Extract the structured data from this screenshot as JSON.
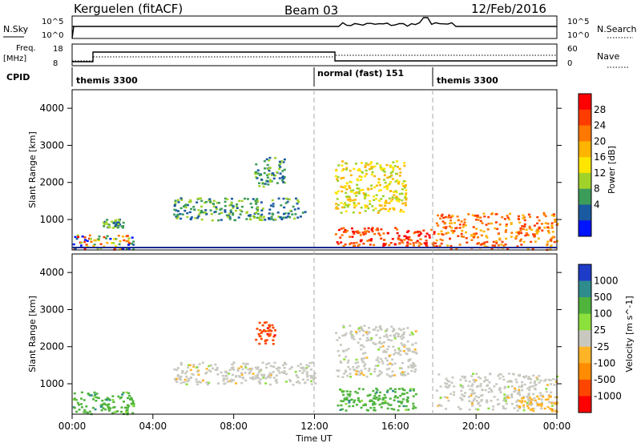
{
  "header": {
    "station": "Kerguelen (fitACF)",
    "beam": "Beam 03",
    "date": "12/Feb/2016"
  },
  "panels": {
    "nsky_label": "N.Sky",
    "nsky_ticks": [
      "10^5",
      "10^0"
    ],
    "nsearch_label": "N.Search",
    "nsearch_ticks": [
      "10^5",
      "10^0"
    ],
    "freq_label": "Freq.",
    "freq_unit": "[MHz]",
    "freq_ticks": [
      "18",
      "8"
    ],
    "nave_label": "Nave",
    "nave_ticks": [
      "60",
      "0"
    ],
    "cpid_label": "CPID",
    "cpid_segments": [
      "themis 3300",
      "normal (fast) 151",
      "themis 3300"
    ]
  },
  "axes": {
    "ylabel": "Slant Range [km]",
    "yticks": [
      "4000",
      "3000",
      "2000",
      "1000"
    ],
    "xlabel": "Time UT",
    "xticks": [
      "00:00",
      "04:00",
      "08:00",
      "12:00",
      "16:00",
      "20:00",
      "00:00"
    ]
  },
  "power_scale": {
    "label": "Power [dB]",
    "ticks": [
      "28",
      "24",
      "20",
      "16",
      "12",
      "8",
      "4"
    ],
    "colors": [
      "#ff0000",
      "#ff3c00",
      "#ff7800",
      "#ffb400",
      "#ffe600",
      "#a0d22a",
      "#3c9c5a",
      "#1a5aa0",
      "#0014ff"
    ]
  },
  "velocity_scale": {
    "label": "Velocity [m s^-1]",
    "ticks": [
      "1000",
      "500",
      "100",
      "25",
      "-25",
      "-100",
      "-500",
      "-1000"
    ],
    "colors": [
      "#1e3cc8",
      "#2e8c8c",
      "#50b43c",
      "#8ce03c",
      "#c8c8c0",
      "#ffb428",
      "#ff8c00",
      "#ff4600",
      "#ff0000"
    ]
  },
  "chart_data": {
    "type": "heatmap",
    "x_range": [
      "00:00",
      "24:00"
    ],
    "y_range_km": [
      180,
      4500
    ],
    "cpid_change_times_ut": [
      "12:00",
      "18:00"
    ],
    "power_regions": [
      {
        "t0": 0.0,
        "t1": 3.0,
        "r0": 200,
        "r1": 600,
        "level": "mixed"
      },
      {
        "t0": 1.5,
        "t1": 2.5,
        "r0": 800,
        "r1": 1050,
        "level": 8
      },
      {
        "t0": 5.0,
        "t1": 11.5,
        "r0": 1000,
        "r1": 1600,
        "level": 8
      },
      {
        "t0": 9.0,
        "t1": 10.5,
        "r0": 1900,
        "r1": 2700,
        "level": 8
      },
      {
        "t0": 13.0,
        "t1": 18.0,
        "r0": 300,
        "r1": 800,
        "level": 28
      },
      {
        "t0": 13.0,
        "t1": 16.5,
        "r0": 1200,
        "r1": 2600,
        "level": 16
      },
      {
        "t0": 18.0,
        "t1": 24.0,
        "r0": 200,
        "r1": 1200,
        "level": 24
      }
    ],
    "velocity_regions": [
      {
        "t0": 0.0,
        "t1": 3.0,
        "r0": 200,
        "r1": 800,
        "v": 100
      },
      {
        "t0": 5.0,
        "t1": 12.0,
        "r0": 1000,
        "r1": 1600,
        "v": 0
      },
      {
        "t0": 9.0,
        "t1": 10.0,
        "r0": 2100,
        "r1": 2700,
        "v": -1000
      },
      {
        "t0": 13.0,
        "t1": 17.0,
        "r0": 300,
        "r1": 900,
        "v": 100
      },
      {
        "t0": 13.0,
        "t1": 17.0,
        "r0": 1200,
        "r1": 2600,
        "v": 0
      },
      {
        "t0": 18.0,
        "t1": 24.0,
        "r0": 300,
        "r1": 1300,
        "v": 0
      },
      {
        "t0": 22.0,
        "t1": 24.0,
        "r0": 250,
        "r1": 700,
        "v": -100
      }
    ]
  }
}
